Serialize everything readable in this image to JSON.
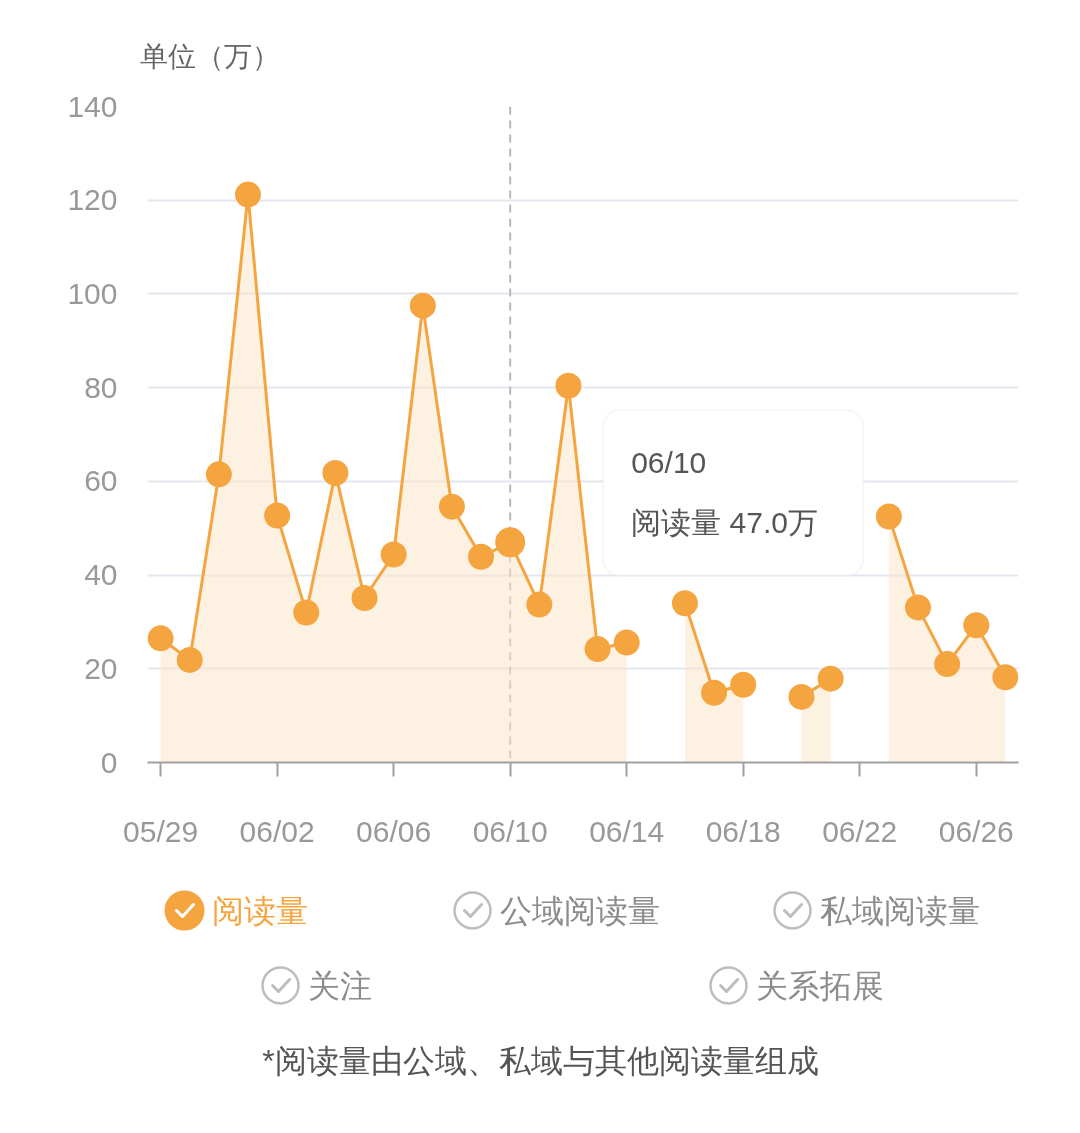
{
  "chart_data": {
    "type": "area",
    "ylabel": "单位（万）",
    "categories": [
      "05/29",
      null,
      null,
      null,
      "06/02",
      null,
      null,
      null,
      "06/06",
      null,
      null,
      null,
      "06/10",
      null,
      null,
      null,
      "06/14",
      null,
      null,
      null,
      "06/18",
      null,
      null,
      null,
      "06/22",
      null,
      null,
      null,
      "06/26",
      null
    ],
    "series": [
      {
        "name": "阅读量",
        "color": "#f5a540",
        "values": [
          26.5,
          21.9,
          61.5,
          121.2,
          52.7,
          32.0,
          61.8,
          35.1,
          44.4,
          97.5,
          54.6,
          43.9,
          47.0,
          33.7,
          80.4,
          24.2,
          25.6,
          null,
          34.0,
          14.9,
          16.6,
          null,
          14.0,
          17.9,
          null,
          52.5,
          33.1,
          21.0,
          29.3,
          18.2
        ]
      },
      {
        "name": "公域阅读量",
        "color": "#bdbdbd",
        "values": [
          null,
          null,
          null,
          null,
          null,
          null,
          null,
          null,
          null,
          null,
          null,
          null,
          null,
          null,
          null,
          null,
          null,
          null,
          null,
          null,
          null,
          null,
          null,
          null,
          null,
          null,
          null,
          null,
          null,
          null
        ]
      },
      {
        "name": "私域阅读量",
        "color": "#bdbdbd",
        "values": [
          null,
          null,
          null,
          null,
          null,
          null,
          null,
          null,
          null,
          null,
          null,
          null,
          null,
          null,
          null,
          null,
          null,
          null,
          null,
          null,
          null,
          null,
          null,
          null,
          null,
          null,
          null,
          null,
          null,
          null
        ]
      },
      {
        "name": "关注",
        "color": "#bdbdbd",
        "values": [
          null,
          null,
          null,
          null,
          null,
          null,
          null,
          null,
          null,
          null,
          null,
          null,
          null,
          null,
          null,
          null,
          null,
          null,
          null,
          null,
          null,
          null,
          null,
          null,
          null,
          null,
          null,
          null,
          null,
          null
        ]
      },
      {
        "name": "关系拓展",
        "color": "#bdbdbd",
        "values": [
          null,
          null,
          null,
          null,
          null,
          null,
          null,
          null,
          null,
          null,
          null,
          null,
          null,
          null,
          null,
          null,
          null,
          null,
          null,
          null,
          null,
          null,
          null,
          null,
          null,
          null,
          null,
          null,
          null,
          null
        ]
      }
    ],
    "ylim": [
      0,
      140
    ],
    "yticks": [
      0,
      20,
      40,
      60,
      80,
      100,
      120,
      140
    ],
    "grid": "y",
    "legend": "bottom",
    "marker": "circle",
    "ref_lines": [
      {
        "axis": "x",
        "value": "06/10",
        "color": "#b4b8c0",
        "line_style": "dashed"
      }
    ],
    "annotations": [
      "06/10",
      "阅读量 47.0万",
      "*阅读量由公域、私域与其他阅读量组成"
    ]
  }
}
